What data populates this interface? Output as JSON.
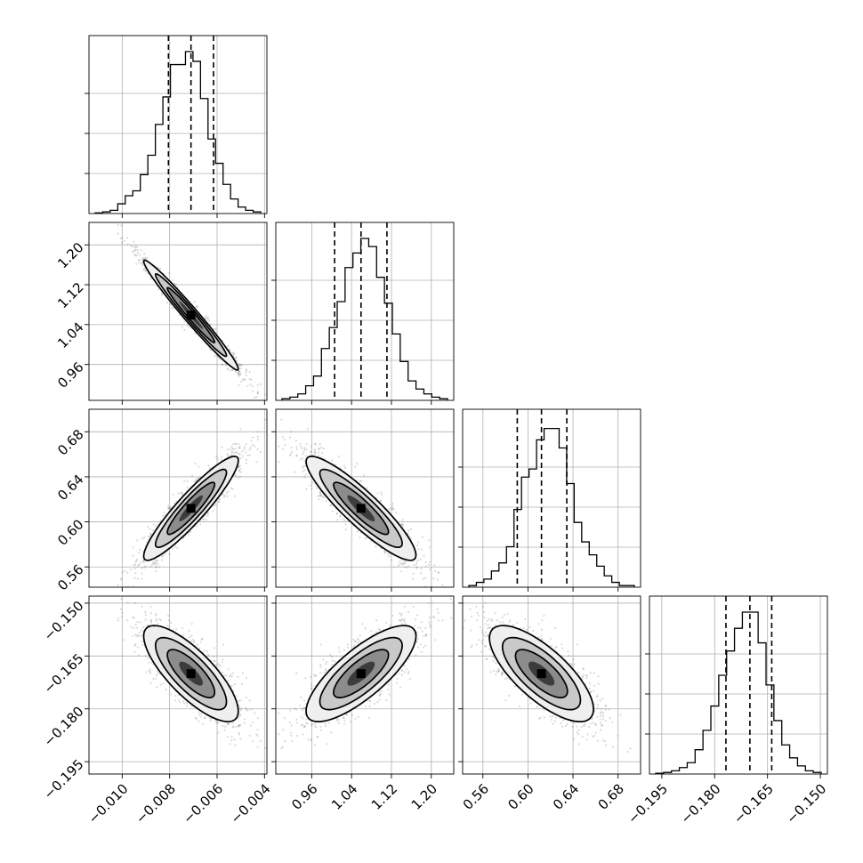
{
  "chart_data": {
    "type": "corner",
    "title": "",
    "grid": true,
    "parameters": [
      {
        "range": [
          -0.0114,
          -0.0039
        ],
        "ticks": [
          -0.01,
          -0.008,
          -0.006,
          -0.004
        ],
        "tick_labels": [
          "−0.010",
          "−0.008",
          "−0.006",
          "−0.004"
        ],
        "quantiles": [
          -0.00805,
          -0.0071,
          -0.00615
        ],
        "hist_values": [
          0.004,
          0.01,
          0.02,
          0.06,
          0.11,
          0.14,
          0.24,
          0.36,
          0.55,
          0.72,
          0.92,
          0.92,
          1.0,
          0.94,
          0.71,
          0.46,
          0.31,
          0.18,
          0.09,
          0.04,
          0.02,
          0.01
        ]
      },
      {
        "range": [
          0.888,
          1.245
        ],
        "ticks": [
          0.96,
          1.04,
          1.12,
          1.2
        ],
        "tick_labels": [
          "0.96",
          "1.04",
          "1.12",
          "1.20"
        ],
        "quantiles": [
          1.006,
          1.059,
          1.111
        ],
        "hist_values": [
          0.01,
          0.02,
          0.04,
          0.09,
          0.15,
          0.32,
          0.45,
          0.61,
          0.82,
          0.91,
          1.0,
          0.95,
          0.76,
          0.6,
          0.41,
          0.24,
          0.12,
          0.07,
          0.04,
          0.02,
          0.01
        ]
      },
      {
        "range": [
          0.542,
          0.7
        ],
        "ticks": [
          0.56,
          0.6,
          0.64,
          0.68
        ],
        "tick_labels": [
          "0.56",
          "0.60",
          "0.64",
          "0.68"
        ],
        "quantiles": [
          0.5905,
          0.612,
          0.6345
        ],
        "hist_values": [
          0.01,
          0.03,
          0.05,
          0.1,
          0.15,
          0.25,
          0.48,
          0.68,
          0.73,
          0.91,
          0.98,
          0.98,
          0.86,
          0.64,
          0.4,
          0.28,
          0.2,
          0.13,
          0.07,
          0.03,
          0.01,
          0.01
        ]
      },
      {
        "range": [
          -0.1985,
          -0.148
        ],
        "ticks": [
          -0.195,
          -0.18,
          -0.165,
          -0.15
        ],
        "tick_labels": [
          "−0.195",
          "−0.180",
          "−0.165",
          "−0.150"
        ],
        "quantiles": [
          -0.1768,
          -0.17,
          -0.1638
        ],
        "hist_values": [
          0.005,
          0.01,
          0.02,
          0.04,
          0.07,
          0.15,
          0.27,
          0.42,
          0.61,
          0.76,
          0.9,
          1.0,
          1.0,
          0.81,
          0.55,
          0.33,
          0.18,
          0.1,
          0.05,
          0.02,
          0.01
        ]
      }
    ],
    "correlations": [
      [
        1,
        -0.98,
        0.92,
        -0.78
      ],
      [
        -0.98,
        1,
        -0.9,
        0.78
      ],
      [
        0.92,
        -0.9,
        1,
        -0.74
      ],
      [
        -0.78,
        0.78,
        -0.74,
        1
      ]
    ],
    "contour_levels_sigma": [
      0.5,
      1.0,
      1.5,
      2.0
    ]
  }
}
